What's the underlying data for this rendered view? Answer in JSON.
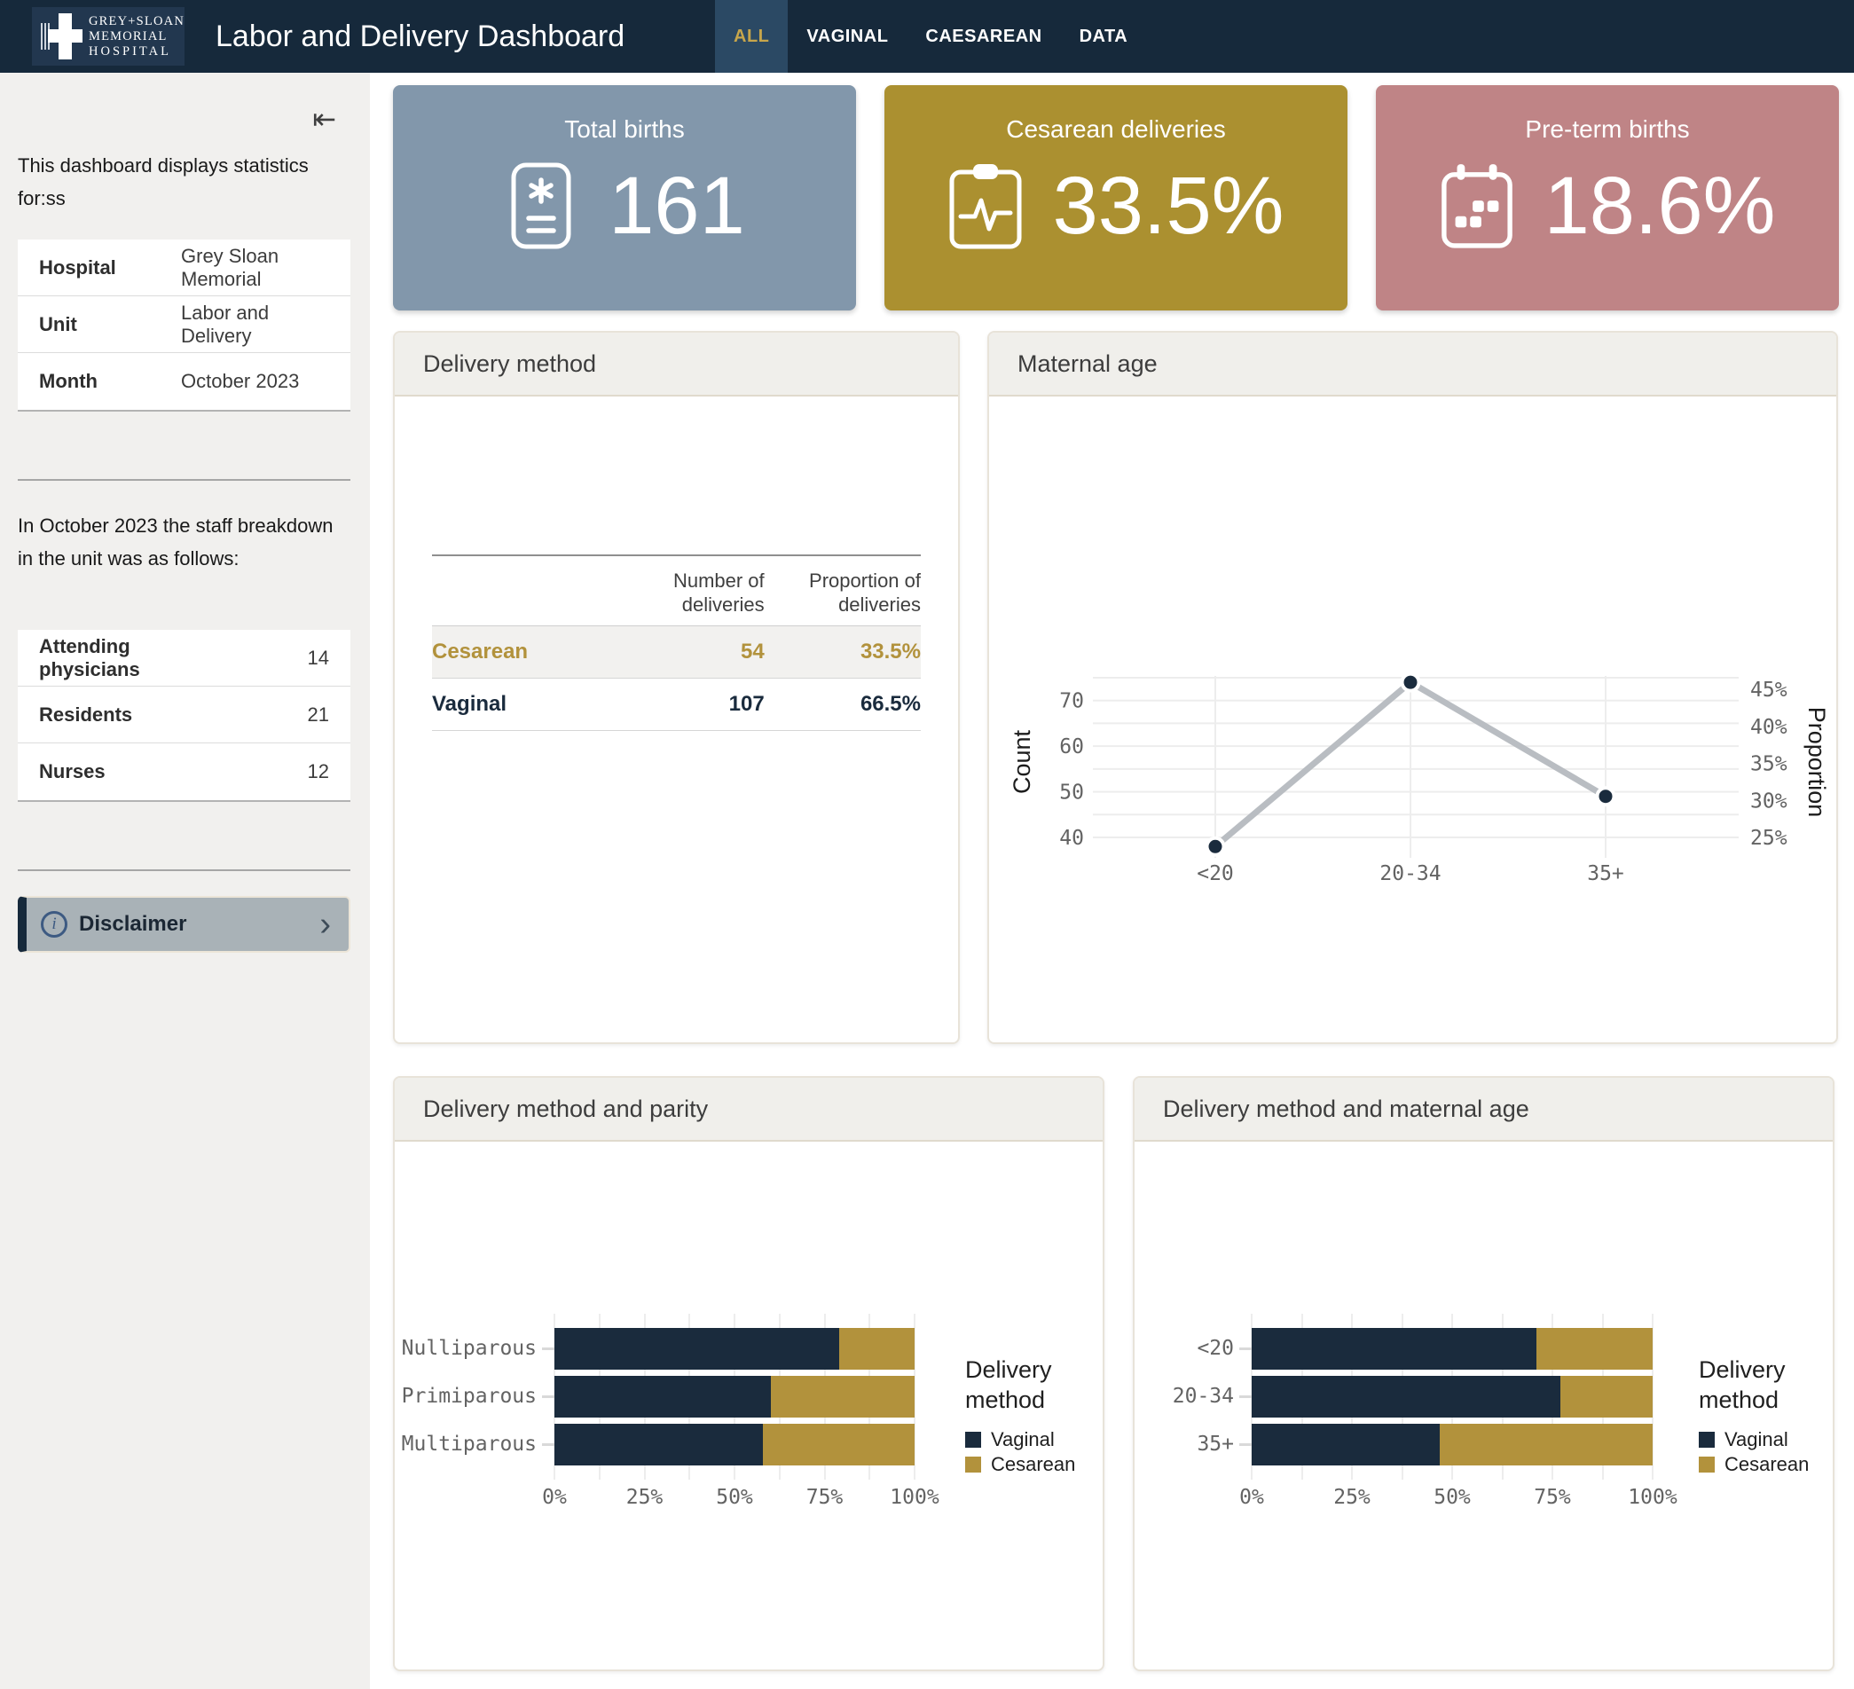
{
  "navbar": {
    "logo": {
      "lines": [
        "GREY+SLOAN",
        "MEMORIAL",
        "HOSPITAL"
      ]
    },
    "title": "Labor and Delivery Dashboard",
    "tabs": [
      {
        "label": "ALL",
        "active": true
      },
      {
        "label": "VAGINAL",
        "active": false
      },
      {
        "label": "CAESAREAN",
        "active": false
      },
      {
        "label": "DATA",
        "active": false
      }
    ]
  },
  "sidebar": {
    "collapse_icon": "⇤",
    "intro": "This dashboard displays statistics for:ss",
    "info_table": [
      {
        "label": "Hospital",
        "value": "Grey Sloan Memorial"
      },
      {
        "label": "Unit",
        "value": "Labor and Delivery"
      },
      {
        "label": "Month",
        "value": "October 2023"
      }
    ],
    "staff_intro": "In October 2023 the staff breakdown in the unit was as follows:",
    "staff_table": [
      {
        "label": "Attending physicians",
        "value": "14"
      },
      {
        "label": "Residents",
        "value": "21"
      },
      {
        "label": "Nurses",
        "value": "12"
      }
    ],
    "disclaimer_label": "Disclaimer"
  },
  "kpis": [
    {
      "title": "Total births",
      "value": "161",
      "color": "#8297ab",
      "icon": "birth-record-icon"
    },
    {
      "title": "Cesarean deliveries",
      "value": "33.5%",
      "color": "#ab9030",
      "icon": "clipboard-pulse-icon"
    },
    {
      "title": "Pre-term births",
      "value": "18.6%",
      "color": "#bf8486",
      "icon": "calendar-icon"
    }
  ],
  "delivery_method_table": {
    "title": "Delivery method",
    "columns": [
      "",
      "Number of deliveries",
      "Proportion of deliveries"
    ],
    "rows": [
      {
        "label": "Cesarean",
        "number": "54",
        "proportion": "33.5%",
        "color": "#b2923c"
      },
      {
        "label": "Vaginal",
        "number": "107",
        "proportion": "66.5%",
        "color": "#1a2b3d"
      }
    ]
  },
  "chart_data": [
    {
      "type": "line",
      "title": "Maternal age",
      "categories": [
        "<20",
        "20-34",
        "35+"
      ],
      "series": [
        {
          "name": "Count",
          "values": [
            38,
            74,
            49
          ]
        }
      ],
      "proportions_pct": [
        23.6,
        46.0,
        30.4
      ],
      "ylabel_left": "Count",
      "ylabel_right": "Proportion",
      "yticks_left": [
        40,
        50,
        60,
        70
      ],
      "yticks_right_pct": [
        25,
        30,
        35,
        40,
        45
      ],
      "ylim_left": [
        35,
        76
      ],
      "grid": true,
      "line_color": "#b9bdc2",
      "marker_color": "#1a2b3d"
    },
    {
      "type": "bar",
      "orientation": "horizontal",
      "stacked": true,
      "title": "Delivery method and parity",
      "categories": [
        "Nulliparous",
        "Primiparous",
        "Multiparous"
      ],
      "series": [
        {
          "name": "Vaginal",
          "color": "#1a2b3d",
          "values": [
            79,
            60,
            58
          ]
        },
        {
          "name": "Cesarean",
          "color": "#b2923c",
          "values": [
            21,
            40,
            42
          ]
        }
      ],
      "xticks": [
        "0%",
        "25%",
        "50%",
        "75%",
        "100%"
      ],
      "xlim": [
        0,
        100
      ],
      "legend_title": "Delivery method",
      "legend_position": "right"
    },
    {
      "type": "bar",
      "orientation": "horizontal",
      "stacked": true,
      "title": "Delivery method and maternal age",
      "categories": [
        "<20",
        "20-34",
        "35+"
      ],
      "series": [
        {
          "name": "Vaginal",
          "color": "#1a2b3d",
          "values": [
            71,
            77,
            47
          ]
        },
        {
          "name": "Cesarean",
          "color": "#b2923c",
          "values": [
            29,
            23,
            53
          ]
        }
      ],
      "xticks": [
        "0%",
        "25%",
        "50%",
        "75%",
        "100%"
      ],
      "xlim": [
        0,
        100
      ],
      "legend_title": "Delivery method",
      "legend_position": "right"
    }
  ],
  "colors": {
    "navbar": "#16293b",
    "active_tab_bg": "#2b4964",
    "accent_gold": "#c7a64b",
    "vaginal_navy": "#1a2b3d",
    "cesarean_gold": "#b2923c",
    "sidebar_bg": "#f1f0ee",
    "panel_header_bg": "#f0efeb"
  }
}
